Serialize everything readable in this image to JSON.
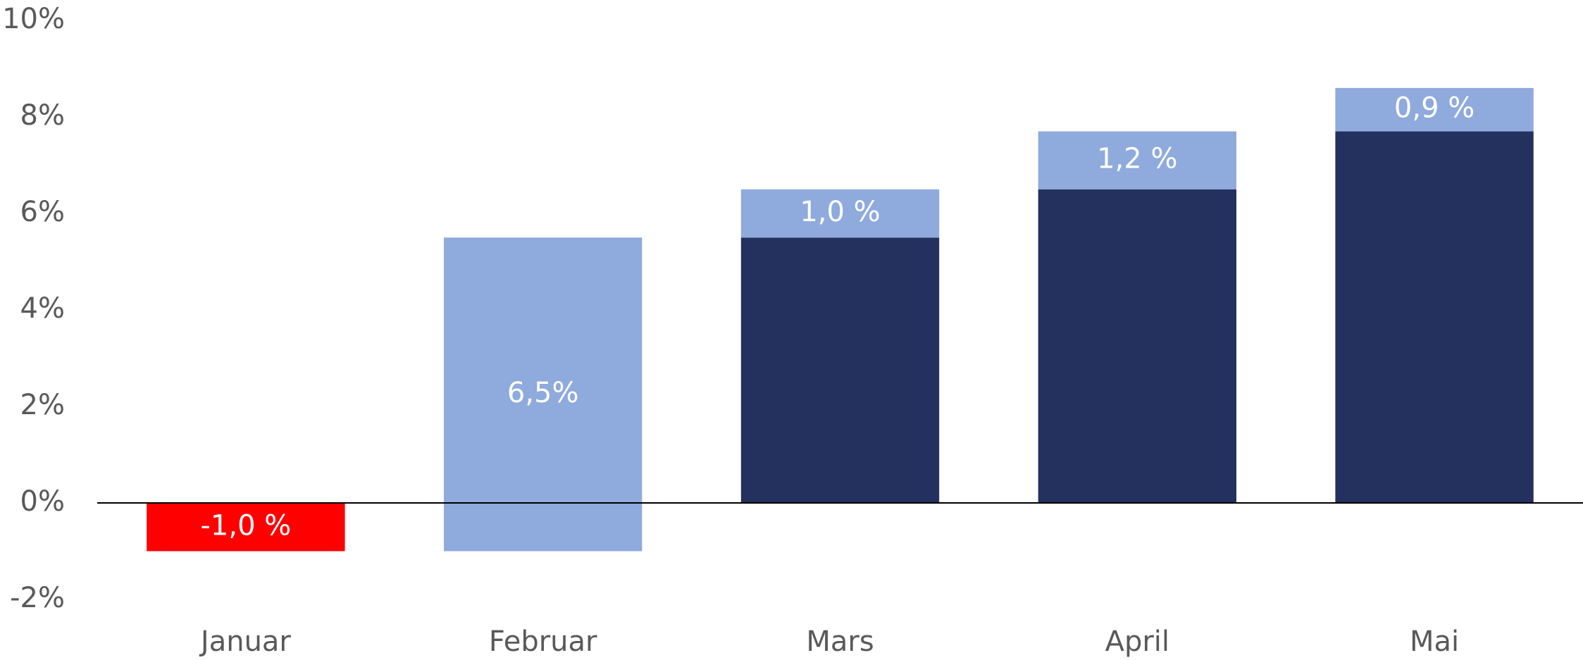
{
  "chart_data": {
    "type": "waterfall",
    "categories": [
      "Januar",
      "Februar",
      "Mars",
      "April",
      "Mai"
    ],
    "values": [
      -1.0,
      6.5,
      1.0,
      1.2,
      0.9
    ],
    "value_labels": [
      "-1,0 %",
      "6,5%",
      "1,0 %",
      "1,2 %",
      "0,9 %"
    ],
    "negative_color": "#ff0000",
    "positive_color": "#8faadc",
    "total_color": "#24305e",
    "ylim": [
      -2,
      10
    ],
    "yticks": [
      {
        "value": -2,
        "label": "-2%"
      },
      {
        "value": 0,
        "label": "0%"
      },
      {
        "value": 2,
        "label": "2%"
      },
      {
        "value": 4,
        "label": "4%"
      },
      {
        "value": 6,
        "label": "6%"
      },
      {
        "value": 8,
        "label": "8%"
      },
      {
        "value": 10,
        "label": "10%"
      }
    ],
    "grid": false
  }
}
